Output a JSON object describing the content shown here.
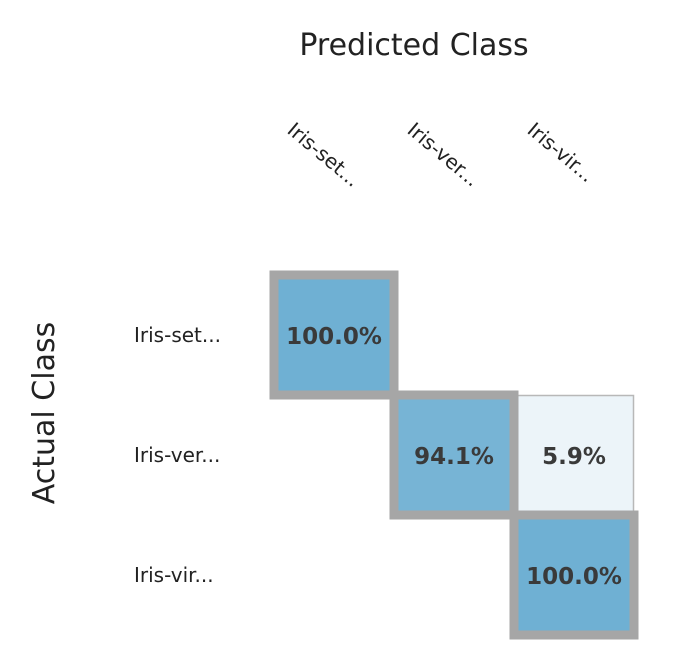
{
  "chart_data": {
    "type": "heatmap",
    "title": "",
    "xlabel": "Predicted Class",
    "ylabel": "Actual Class",
    "x_categories": [
      "Iris-set...",
      "Iris-ver...",
      "Iris-vir..."
    ],
    "y_categories": [
      "Iris-set...",
      "Iris-ver...",
      "Iris-vir..."
    ],
    "values": [
      [
        100.0,
        0,
        0
      ],
      [
        0,
        94.1,
        5.9
      ],
      [
        0,
        0,
        100.0
      ]
    ],
    "labels": [
      [
        "100.0%",
        "",
        ""
      ],
      [
        "",
        "94.1%",
        "5.9%"
      ],
      [
        "",
        "",
        "100.0%"
      ]
    ],
    "colors": {
      "high": "#6fb0d3",
      "low": "#f4f8fb",
      "diagonal_border": "#a6a6a6",
      "cell_border": "#b8b8b8"
    }
  }
}
